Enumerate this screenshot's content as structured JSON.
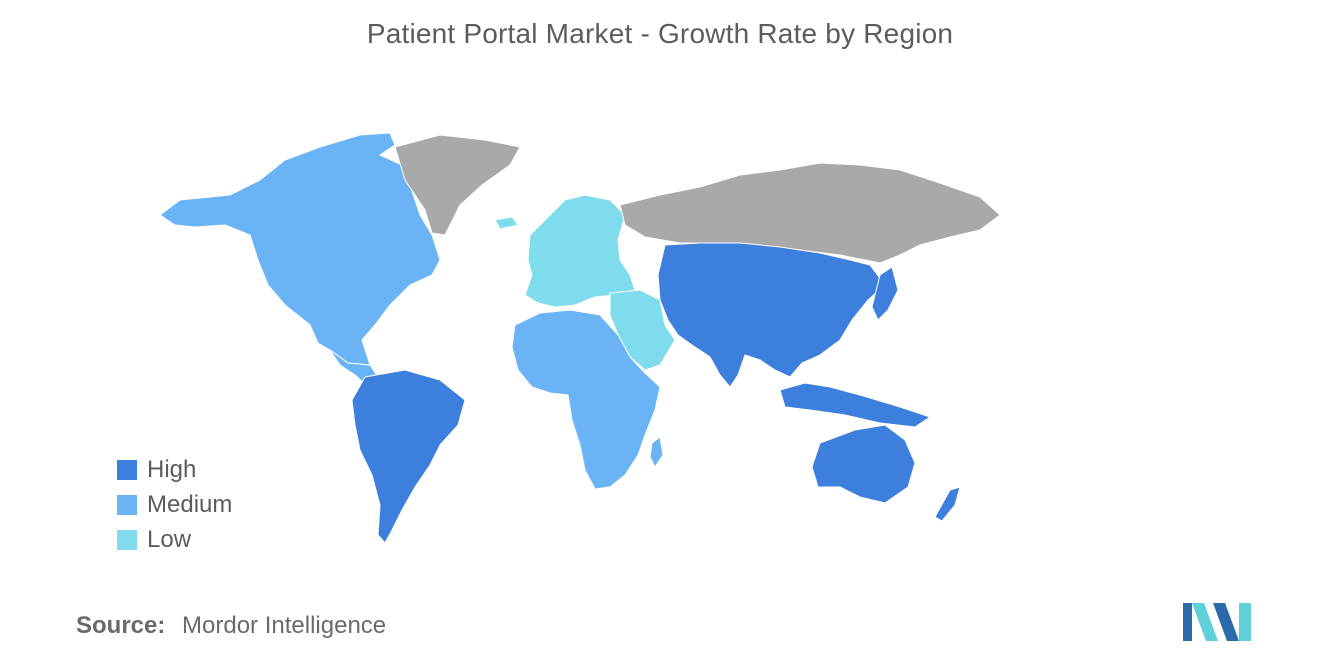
{
  "title": "Patient Portal Market - Growth Rate by Region",
  "colors": {
    "high": "#3d7fdc",
    "medium": "#6ab4f6",
    "low": "#7fdcec",
    "no_data": "#a9a9a9",
    "logo_dark": "#2a6aa8",
    "logo_light": "#5fd0d8"
  },
  "legend": {
    "items": [
      {
        "key": "high",
        "label": "High"
      },
      {
        "key": "medium",
        "label": "Medium"
      },
      {
        "key": "low",
        "label": "Low"
      }
    ]
  },
  "regions": [
    {
      "name": "north-america",
      "level": "medium"
    },
    {
      "name": "greenland",
      "level": "no_data"
    },
    {
      "name": "south-america",
      "level": "high"
    },
    {
      "name": "europe",
      "level": "low"
    },
    {
      "name": "middle-east",
      "level": "low"
    },
    {
      "name": "africa",
      "level": "medium"
    },
    {
      "name": "russia",
      "level": "no_data"
    },
    {
      "name": "asia-pacific",
      "level": "high"
    },
    {
      "name": "australia",
      "level": "high"
    }
  ],
  "source": {
    "label": "Source:",
    "value": "Mordor Intelligence"
  }
}
